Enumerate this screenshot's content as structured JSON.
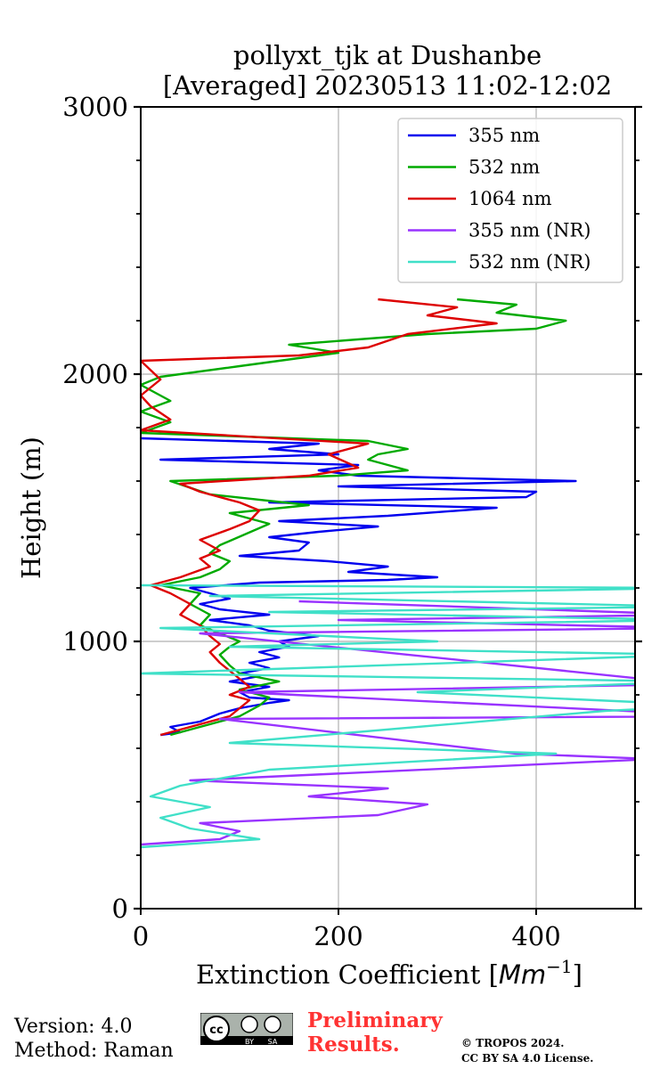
{
  "chart_data": {
    "type": "line",
    "title_line1": "pollyxt_tjk at Dushanbe",
    "title_line2": "[Averaged] 20230513 11:02-12:02",
    "xlabel": "Extinction Coefficient [",
    "xlabel_unit": "Mm",
    "xlabel_exp": "−1",
    "xlabel_close": "]",
    "ylabel": "Height (m)",
    "xlim": [
      0,
      500
    ],
    "ylim": [
      0,
      3000
    ],
    "xticks": [
      0,
      200,
      400
    ],
    "yticks": [
      0,
      1000,
      2000,
      3000
    ],
    "grid": true,
    "legend_position": "top-right",
    "series": [
      {
        "name": "355 nm",
        "color": "#0000ee",
        "points": [
          [
            20,
            650
          ],
          [
            40,
            660
          ],
          [
            30,
            680
          ],
          [
            60,
            700
          ],
          [
            80,
            730
          ],
          [
            100,
            750
          ],
          [
            130,
            770
          ],
          [
            150,
            780
          ],
          [
            110,
            790
          ],
          [
            100,
            810
          ],
          [
            130,
            830
          ],
          [
            90,
            850
          ],
          [
            120,
            870
          ],
          [
            100,
            880
          ],
          [
            130,
            900
          ],
          [
            110,
            920
          ],
          [
            140,
            940
          ],
          [
            120,
            960
          ],
          [
            150,
            980
          ],
          [
            140,
            1000
          ],
          [
            180,
            1020
          ],
          [
            130,
            1040
          ],
          [
            110,
            1060
          ],
          [
            70,
            1080
          ],
          [
            130,
            1100
          ],
          [
            80,
            1120
          ],
          [
            60,
            1140
          ],
          [
            90,
            1160
          ],
          [
            70,
            1180
          ],
          [
            50,
            1200
          ],
          [
            120,
            1220
          ],
          [
            250,
            1230
          ],
          [
            300,
            1240
          ],
          [
            210,
            1260
          ],
          [
            250,
            1280
          ],
          [
            190,
            1300
          ],
          [
            100,
            1320
          ],
          [
            160,
            1340
          ],
          [
            170,
            1370
          ],
          [
            130,
            1390
          ],
          [
            180,
            1410
          ],
          [
            240,
            1430
          ],
          [
            140,
            1450
          ],
          [
            250,
            1470
          ],
          [
            360,
            1500
          ],
          [
            130,
            1520
          ],
          [
            390,
            1540
          ],
          [
            400,
            1560
          ],
          [
            200,
            1580
          ],
          [
            440,
            1600
          ],
          [
            220,
            1620
          ],
          [
            180,
            1640
          ],
          [
            220,
            1660
          ],
          [
            20,
            1680
          ],
          [
            200,
            1700
          ],
          [
            130,
            1720
          ],
          [
            180,
            1740
          ],
          [
            0,
            1760
          ]
        ]
      },
      {
        "name": "532 nm",
        "color": "#00aa00",
        "points": [
          [
            30,
            650
          ],
          [
            60,
            680
          ],
          [
            100,
            720
          ],
          [
            120,
            760
          ],
          [
            130,
            790
          ],
          [
            100,
            820
          ],
          [
            140,
            850
          ],
          [
            100,
            880
          ],
          [
            90,
            910
          ],
          [
            80,
            950
          ],
          [
            90,
            980
          ],
          [
            100,
            1000
          ],
          [
            80,
            1030
          ],
          [
            60,
            1060
          ],
          [
            70,
            1100
          ],
          [
            50,
            1140
          ],
          [
            60,
            1180
          ],
          [
            20,
            1210
          ],
          [
            60,
            1240
          ],
          [
            80,
            1270
          ],
          [
            90,
            1300
          ],
          [
            70,
            1330
          ],
          [
            80,
            1360
          ],
          [
            130,
            1440
          ],
          [
            90,
            1480
          ],
          [
            170,
            1510
          ],
          [
            70,
            1550
          ],
          [
            30,
            1600
          ],
          [
            200,
            1620
          ],
          [
            270,
            1640
          ],
          [
            230,
            1680
          ],
          [
            240,
            1700
          ],
          [
            270,
            1720
          ],
          [
            230,
            1750
          ],
          [
            0,
            1780
          ],
          [
            30,
            1820
          ],
          [
            0,
            1860
          ],
          [
            30,
            1900
          ],
          [
            0,
            1960
          ],
          [
            20,
            1990
          ],
          [
            100,
            2030
          ],
          [
            200,
            2080
          ],
          [
            150,
            2110
          ],
          [
            290,
            2150
          ],
          [
            400,
            2170
          ],
          [
            430,
            2200
          ],
          [
            360,
            2230
          ],
          [
            380,
            2260
          ],
          [
            320,
            2280
          ]
        ]
      },
      {
        "name": "1064 nm",
        "color": "#dd0000",
        "points": [
          [
            20,
            650
          ],
          [
            50,
            680
          ],
          [
            90,
            720
          ],
          [
            100,
            750
          ],
          [
            110,
            780
          ],
          [
            90,
            800
          ],
          [
            110,
            830
          ],
          [
            100,
            860
          ],
          [
            90,
            890
          ],
          [
            80,
            920
          ],
          [
            70,
            960
          ],
          [
            80,
            990
          ],
          [
            70,
            1020
          ],
          [
            60,
            1060
          ],
          [
            40,
            1100
          ],
          [
            50,
            1140
          ],
          [
            30,
            1180
          ],
          [
            10,
            1210
          ],
          [
            40,
            1240
          ],
          [
            70,
            1280
          ],
          [
            60,
            1310
          ],
          [
            80,
            1340
          ],
          [
            60,
            1380
          ],
          [
            90,
            1420
          ],
          [
            110,
            1450
          ],
          [
            120,
            1490
          ],
          [
            100,
            1520
          ],
          [
            60,
            1560
          ],
          [
            40,
            1590
          ],
          [
            170,
            1620
          ],
          [
            220,
            1650
          ],
          [
            190,
            1700
          ],
          [
            230,
            1740
          ],
          [
            0,
            1790
          ],
          [
            30,
            1830
          ],
          [
            10,
            1880
          ],
          [
            0,
            1920
          ],
          [
            20,
            1980
          ],
          [
            0,
            2050
          ],
          [
            160,
            2070
          ],
          [
            230,
            2100
          ],
          [
            270,
            2150
          ],
          [
            360,
            2190
          ],
          [
            290,
            2220
          ],
          [
            320,
            2250
          ],
          [
            240,
            2280
          ]
        ]
      },
      {
        "name": "355 nm (NR)",
        "color": "#9933ff",
        "points": [
          [
            0,
            240
          ],
          [
            80,
            260
          ],
          [
            100,
            290
          ],
          [
            60,
            320
          ],
          [
            240,
            350
          ],
          [
            290,
            390
          ],
          [
            170,
            420
          ],
          [
            250,
            450
          ],
          [
            50,
            480
          ],
          [
            520,
            560
          ],
          [
            380,
            580
          ],
          [
            80,
            710
          ],
          [
            600,
            720
          ],
          [
            100,
            810
          ],
          [
            560,
            840
          ],
          [
            60,
            1030
          ],
          [
            560,
            1050
          ],
          [
            200,
            1080
          ],
          [
            560,
            1100
          ],
          [
            160,
            1150
          ]
        ]
      },
      {
        "name": "532 nm (NR)",
        "color": "#40e0c8",
        "points": [
          [
            0,
            230
          ],
          [
            120,
            260
          ],
          [
            50,
            300
          ],
          [
            20,
            340
          ],
          [
            70,
            380
          ],
          [
            10,
            420
          ],
          [
            40,
            460
          ],
          [
            130,
            520
          ],
          [
            420,
            580
          ],
          [
            90,
            620
          ],
          [
            470,
            740
          ],
          [
            580,
            760
          ],
          [
            280,
            810
          ],
          [
            560,
            850
          ],
          [
            0,
            880
          ],
          [
            560,
            950
          ],
          [
            90,
            980
          ],
          [
            300,
            1000
          ],
          [
            20,
            1050
          ],
          [
            560,
            1080
          ],
          [
            130,
            1110
          ],
          [
            560,
            1130
          ],
          [
            70,
            1170
          ],
          [
            560,
            1200
          ],
          [
            0,
            1210
          ]
        ]
      }
    ]
  },
  "footer": {
    "version": "Version: 4.0",
    "method": "Method: Raman",
    "preliminary_line1": "Preliminary",
    "preliminary_line2": "Results.",
    "copyright_line1": "© TROPOS 2024.",
    "copyright_line2": "CC BY SA 4.0 License.",
    "cc_badge": {
      "main": "cc",
      "by": "BY",
      "sa": "SA"
    }
  }
}
